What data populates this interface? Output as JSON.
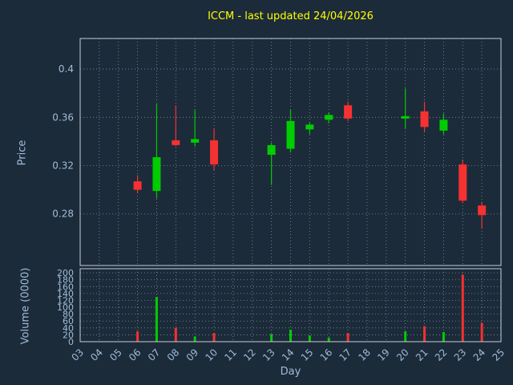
{
  "colors": {
    "background": "#1c2b3a",
    "grid": "#8fa3b8",
    "border": "#c8cdd4",
    "axis_text": "#9fbcd8",
    "title": "#ffff00",
    "up": "#00cc00",
    "down": "#f53131"
  },
  "chart_data": {
    "type": "candlestick",
    "title": "ICCM - last updated 24/04/2026",
    "xlabel": "Day",
    "price_axis": {
      "label": "Price",
      "ticks": [
        0.28,
        0.32,
        0.36,
        0.4
      ],
      "range": [
        0.2373,
        0.4253
      ]
    },
    "volume_axis": {
      "label": "Volume (0000)",
      "ticks": [
        0,
        20,
        40,
        60,
        80,
        100,
        120,
        140,
        160,
        180,
        200
      ],
      "range": [
        0,
        212
      ]
    },
    "x_axis": {
      "ticks": [
        3,
        4,
        5,
        6,
        7,
        8,
        9,
        10,
        11,
        12,
        13,
        14,
        15,
        16,
        17,
        18,
        19,
        20,
        21,
        22,
        23,
        24,
        25
      ],
      "range": [
        3,
        25
      ]
    },
    "candles": [
      {
        "day": 6,
        "open": 0.307,
        "high": 0.312,
        "low": 0.297,
        "close": 0.3,
        "volume": 30
      },
      {
        "day": 7,
        "open": 0.299,
        "high": 0.371,
        "low": 0.293,
        "close": 0.327,
        "volume": 130
      },
      {
        "day": 8,
        "open": 0.341,
        "high": 0.37,
        "low": 0.336,
        "close": 0.337,
        "volume": 40
      },
      {
        "day": 9,
        "open": 0.339,
        "high": 0.366,
        "low": 0.336,
        "close": 0.342,
        "volume": 15
      },
      {
        "day": 10,
        "open": 0.341,
        "high": 0.351,
        "low": 0.316,
        "close": 0.321,
        "volume": 25
      },
      {
        "day": 13,
        "open": 0.329,
        "high": 0.339,
        "low": 0.304,
        "close": 0.337,
        "volume": 22
      },
      {
        "day": 14,
        "open": 0.334,
        "high": 0.366,
        "low": 0.331,
        "close": 0.357,
        "volume": 35
      },
      {
        "day": 15,
        "open": 0.35,
        "high": 0.356,
        "low": 0.346,
        "close": 0.354,
        "volume": 18
      },
      {
        "day": 16,
        "open": 0.358,
        "high": 0.364,
        "low": 0.355,
        "close": 0.362,
        "volume": 12
      },
      {
        "day": 17,
        "open": 0.37,
        "high": 0.373,
        "low": 0.357,
        "close": 0.359,
        "volume": 25
      },
      {
        "day": 20,
        "open": 0.359,
        "high": 0.384,
        "low": 0.351,
        "close": 0.361,
        "volume": 30
      },
      {
        "day": 21,
        "open": 0.365,
        "high": 0.373,
        "low": 0.348,
        "close": 0.352,
        "volume": 45
      },
      {
        "day": 22,
        "open": 0.349,
        "high": 0.363,
        "low": 0.346,
        "close": 0.358,
        "volume": 28
      },
      {
        "day": 23,
        "open": 0.321,
        "high": 0.325,
        "low": 0.289,
        "close": 0.291,
        "volume": 195
      },
      {
        "day": 24,
        "open": 0.287,
        "high": 0.29,
        "low": 0.268,
        "close": 0.279,
        "volume": 55
      }
    ]
  }
}
